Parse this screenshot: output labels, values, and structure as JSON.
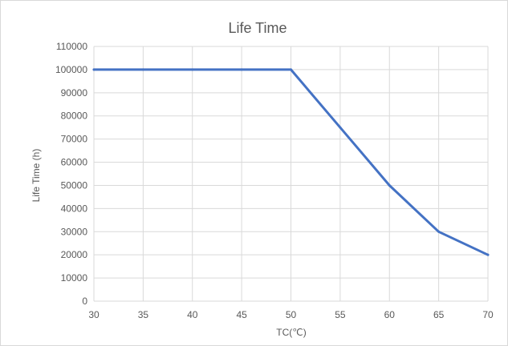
{
  "chart_data": {
    "type": "line",
    "title": "Life Time",
    "xlabel": "TC(℃)",
    "ylabel": "Life Time (h)",
    "x": [
      30,
      35,
      40,
      45,
      50,
      55,
      60,
      65,
      70
    ],
    "series": [
      {
        "name": "",
        "values": [
          100000,
          100000,
          100000,
          100000,
          100000,
          75000,
          50000,
          30000,
          20000
        ]
      }
    ],
    "xlim": [
      30,
      70
    ],
    "ylim": [
      0,
      110000
    ],
    "xticks": [
      30,
      35,
      40,
      45,
      50,
      55,
      60,
      65,
      70
    ],
    "yticks": [
      0,
      10000,
      20000,
      30000,
      40000,
      50000,
      60000,
      70000,
      80000,
      90000,
      100000,
      110000
    ],
    "grid": true,
    "legend": "none",
    "colors": {
      "line": "#4472c4",
      "grid": "#d9d9d9",
      "text": "#595959"
    }
  }
}
